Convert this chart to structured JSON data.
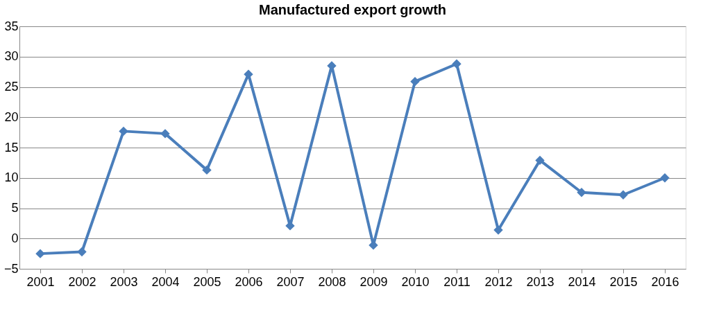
{
  "chart_data": {
    "type": "line",
    "title": "Manufactured export growth",
    "categories": [
      "2001",
      "2002",
      "2003",
      "2004",
      "2005",
      "2006",
      "2007",
      "2008",
      "2009",
      "2010",
      "2011",
      "2012",
      "2013",
      "2014",
      "2015",
      "2016"
    ],
    "series": [
      {
        "color": "#4a7ebb",
        "values": [
          -2.5,
          -2.2,
          17.7,
          17.3,
          11.3,
          27.1,
          2.1,
          28.5,
          -1.1,
          25.9,
          28.8,
          1.4,
          12.9,
          7.6,
          7.2,
          10.0
        ]
      }
    ],
    "ylim": [
      -5,
      35
    ],
    "yticks": [
      -5,
      0,
      5,
      10,
      15,
      20,
      25,
      30,
      35
    ],
    "grid": "y",
    "marker": "diamond",
    "line_style": "solid"
  }
}
